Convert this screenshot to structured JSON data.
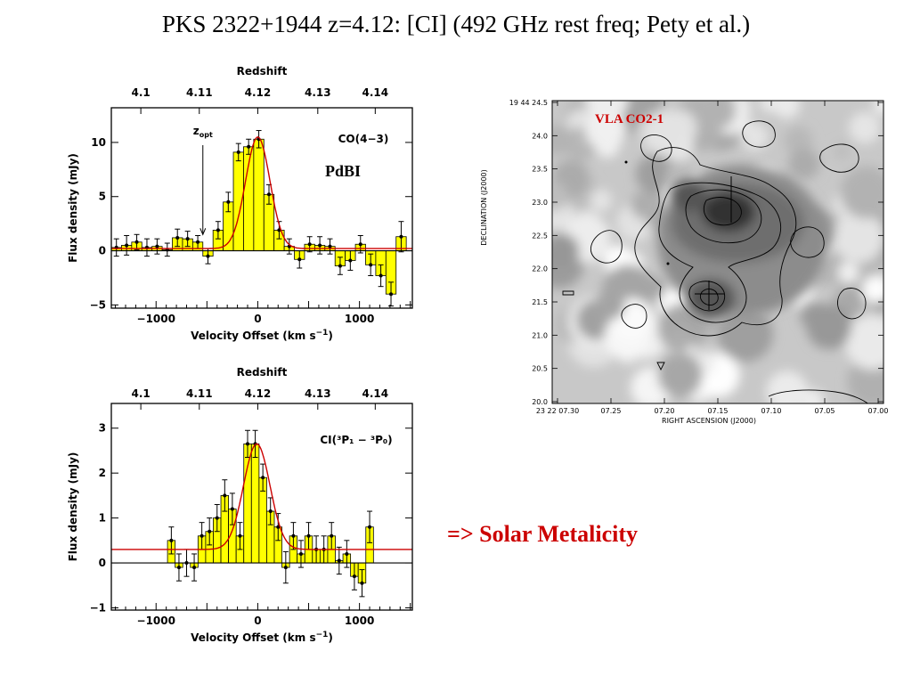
{
  "slide": {
    "title": "PKS 2322+1944 z=4.12: [CI] (492 GHz rest freq; Pety et al.)",
    "pdbi_label": "PdBI",
    "conclusion": "=> Solar Metalicity"
  },
  "colors": {
    "fill": "#ffff00",
    "fit": "#cc0000",
    "accent_text": "#cc0000",
    "axes": "#000000"
  },
  "chart_data": [
    {
      "type": "bar",
      "panel": "top",
      "annotation_line": "CO(4−3)",
      "marker_label": "z",
      "marker_sub": "opt",
      "marker_velocity": -540,
      "top_axis_label": "Redshift",
      "top_ticks": [
        {
          "label": "4.1",
          "v": -1150
        },
        {
          "label": "4.11",
          "v": -575
        },
        {
          "label": "4.12",
          "v": 0
        },
        {
          "label": "4.13",
          "v": 590
        },
        {
          "label": "4.14",
          "v": 1155
        }
      ],
      "xlabel": "Velocity Offset (km s",
      "xlabel_sup": "−1",
      "xlabel_end": ")",
      "ylabel": "Flux density (mJy)",
      "xlim": [
        -1440,
        1520
      ],
      "ylim": [
        -5.3,
        13.2
      ],
      "x_ticks": [
        {
          "v": -1000,
          "label": "−1000"
        },
        {
          "v": 0,
          "label": "0"
        },
        {
          "v": 1000,
          "label": "1000"
        }
      ],
      "y_ticks": [
        {
          "v": -5,
          "label": "−5"
        },
        {
          "v": 0,
          "label": "0"
        },
        {
          "v": 5,
          "label": "5"
        },
        {
          "v": 10,
          "label": "10"
        }
      ],
      "bin_width": 100,
      "bins": [
        {
          "x": -1390,
          "y": 0.3,
          "err": 0.8
        },
        {
          "x": -1290,
          "y": 0.5,
          "err": 0.9
        },
        {
          "x": -1190,
          "y": 0.8,
          "err": 0.7
        },
        {
          "x": -1090,
          "y": 0.3,
          "err": 0.8
        },
        {
          "x": -990,
          "y": 0.4,
          "err": 0.7
        },
        {
          "x": -890,
          "y": 0.1,
          "err": 0.6
        },
        {
          "x": -790,
          "y": 1.2,
          "err": 0.8
        },
        {
          "x": -690,
          "y": 1.1,
          "err": 0.7
        },
        {
          "x": -590,
          "y": 0.8,
          "err": 0.6
        },
        {
          "x": -490,
          "y": -0.5,
          "err": 0.7
        },
        {
          "x": -390,
          "y": 1.9,
          "err": 0.8
        },
        {
          "x": -290,
          "y": 4.5,
          "err": 0.9
        },
        {
          "x": -190,
          "y": 9.1,
          "err": 0.8
        },
        {
          "x": -90,
          "y": 9.6,
          "err": 0.7
        },
        {
          "x": 10,
          "y": 10.3,
          "err": 0.8
        },
        {
          "x": 110,
          "y": 5.2,
          "err": 0.9
        },
        {
          "x": 210,
          "y": 1.9,
          "err": 0.8
        },
        {
          "x": 310,
          "y": 0.4,
          "err": 0.7
        },
        {
          "x": 410,
          "y": -0.8,
          "err": 0.8
        },
        {
          "x": 510,
          "y": 0.6,
          "err": 0.7
        },
        {
          "x": 610,
          "y": 0.5,
          "err": 0.8
        },
        {
          "x": 710,
          "y": 0.4,
          "err": 0.7
        },
        {
          "x": 810,
          "y": -1.4,
          "err": 0.8
        },
        {
          "x": 910,
          "y": -0.9,
          "err": 0.9
        },
        {
          "x": 1010,
          "y": 0.6,
          "err": 0.8
        },
        {
          "x": 1110,
          "y": -1.3,
          "err": 1.0
        },
        {
          "x": 1210,
          "y": -2.3,
          "err": 1.0
        },
        {
          "x": 1310,
          "y": -4.0,
          "err": 1.1
        },
        {
          "x": 1410,
          "y": 1.3,
          "err": 1.4
        }
      ],
      "fit": {
        "amp": 10.3,
        "center": 0,
        "sigma": 120,
        "offset": 0.2
      }
    },
    {
      "type": "bar",
      "panel": "bottom",
      "annotation_line": "CI(³P₁ − ³P₀)",
      "top_axis_label": "Redshift",
      "top_ticks": [
        {
          "label": "4.1",
          "v": -1150
        },
        {
          "label": "4.11",
          "v": -575
        },
        {
          "label": "4.12",
          "v": 0
        },
        {
          "label": "4.13",
          "v": 590
        },
        {
          "label": "4.14",
          "v": 1155
        }
      ],
      "xlabel": "Velocity Offset (km s",
      "xlabel_sup": "−1",
      "xlabel_end": ")",
      "ylabel": "Flux density (mJy)",
      "xlim": [
        -1440,
        1520
      ],
      "ylim": [
        -1.05,
        3.55
      ],
      "x_ticks": [
        {
          "v": -1000,
          "label": "−1000"
        },
        {
          "v": 0,
          "label": "0"
        },
        {
          "v": 1000,
          "label": "1000"
        }
      ],
      "y_ticks": [
        {
          "v": -1,
          "label": "−1"
        },
        {
          "v": 0,
          "label": "0"
        },
        {
          "v": 1,
          "label": "1"
        },
        {
          "v": 2,
          "label": "2"
        },
        {
          "v": 3,
          "label": "3"
        }
      ],
      "bin_width": 75,
      "bins": [
        {
          "x": -850,
          "y": 0.5,
          "err": 0.3
        },
        {
          "x": -775,
          "y": -0.1,
          "err": 0.3
        },
        {
          "x": -700,
          "y": 0.0,
          "err": 0.3
        },
        {
          "x": -625,
          "y": -0.1,
          "err": 0.3
        },
        {
          "x": -550,
          "y": 0.6,
          "err": 0.3
        },
        {
          "x": -475,
          "y": 0.7,
          "err": 0.3
        },
        {
          "x": -400,
          "y": 1.0,
          "err": 0.3
        },
        {
          "x": -325,
          "y": 1.5,
          "err": 0.35
        },
        {
          "x": -250,
          "y": 1.2,
          "err": 0.35
        },
        {
          "x": -175,
          "y": 0.6,
          "err": 0.3
        },
        {
          "x": -100,
          "y": 2.65,
          "err": 0.3
        },
        {
          "x": -25,
          "y": 2.65,
          "err": 0.3
        },
        {
          "x": 50,
          "y": 1.9,
          "err": 0.3
        },
        {
          "x": 125,
          "y": 1.15,
          "err": 0.3
        },
        {
          "x": 200,
          "y": 0.8,
          "err": 0.3
        },
        {
          "x": 275,
          "y": -0.1,
          "err": 0.35
        },
        {
          "x": 350,
          "y": 0.6,
          "err": 0.3
        },
        {
          "x": 425,
          "y": 0.2,
          "err": 0.3
        },
        {
          "x": 500,
          "y": 0.6,
          "err": 0.3
        },
        {
          "x": 575,
          "y": 0.3,
          "err": 0.3
        },
        {
          "x": 650,
          "y": 0.3,
          "err": 0.3
        },
        {
          "x": 725,
          "y": 0.6,
          "err": 0.3
        },
        {
          "x": 800,
          "y": 0.05,
          "err": 0.3
        },
        {
          "x": 875,
          "y": 0.2,
          "err": 0.3
        },
        {
          "x": 950,
          "y": -0.3,
          "err": 0.3
        },
        {
          "x": 1025,
          "y": -0.45,
          "err": 0.3
        },
        {
          "x": 1100,
          "y": 0.8,
          "err": 0.35
        }
      ],
      "fit": {
        "amp": 2.35,
        "center": -10,
        "sigma": 130,
        "offset": 0.3
      }
    },
    {
      "type": "heatmap",
      "panel": "map",
      "title": "VLA CO2-1",
      "xlabel": "RIGHT ASCENSION (J2000)",
      "ylabel": "DECLINATION (J2000)",
      "x_ticks": [
        "23 22 07.30",
        "07.25",
        "07.20",
        "07.15",
        "07.10",
        "07.05",
        "07.00"
      ],
      "y_ticks": [
        "19 44 24.5",
        "24.0",
        "23.5",
        "23.0",
        "22.5",
        "22.0",
        "21.5",
        "21.0",
        "20.5",
        "20.0"
      ]
    }
  ]
}
